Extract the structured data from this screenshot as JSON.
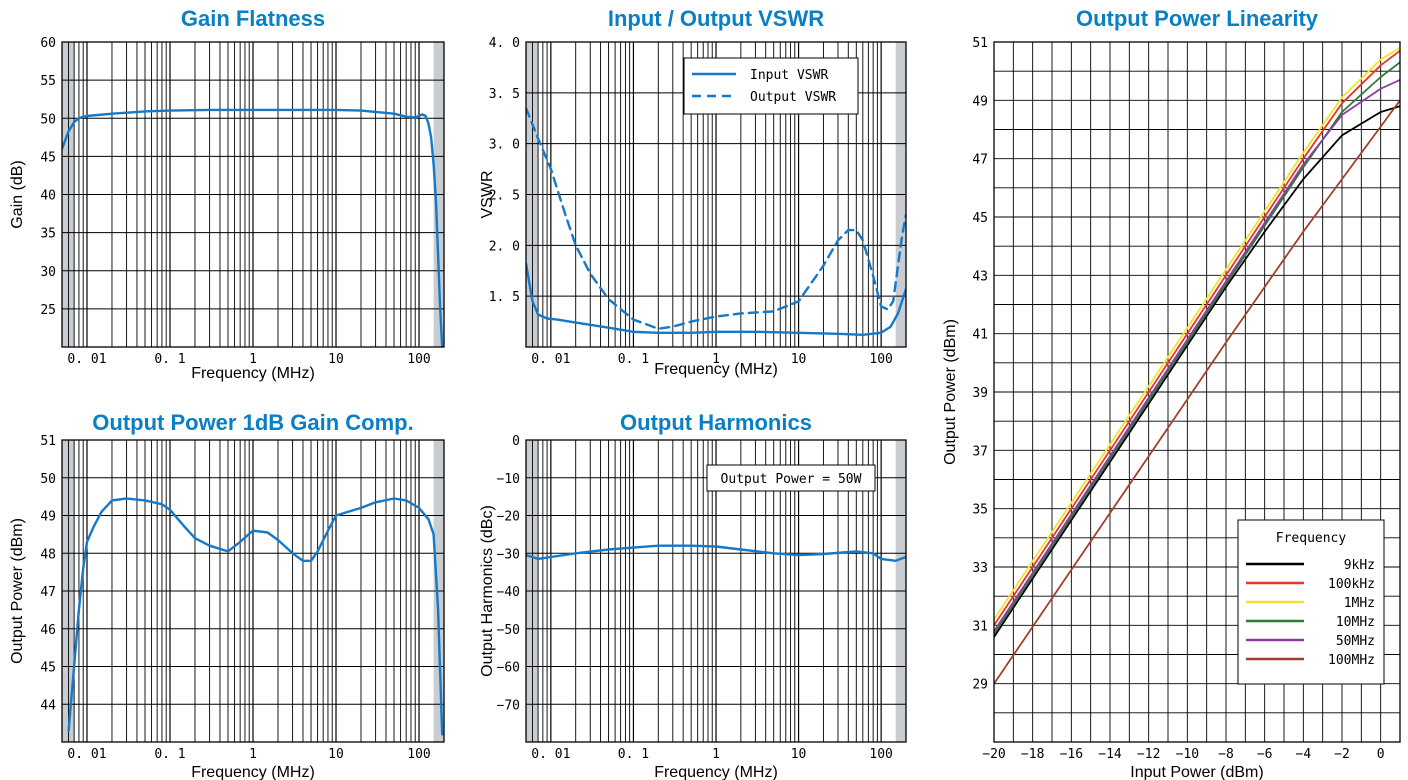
{
  "chart_data": [
    {
      "id": "gain",
      "type": "line",
      "title": "Gain Flatness",
      "xlabel": "Frequency (MHz)",
      "ylabel": "Gain (dB)",
      "xscale": "log",
      "xlim": [
        0.005,
        200
      ],
      "ylim": [
        20,
        60
      ],
      "xticks": [
        0.01,
        0.1,
        1,
        10,
        100
      ],
      "xticklabels": [
        "0. 01",
        "0. 1",
        "1",
        "10",
        "100"
      ],
      "yticks": [
        25,
        30,
        35,
        40,
        45,
        50,
        55,
        60
      ],
      "yticklabels": [
        "25",
        "30",
        "35",
        "40",
        "45",
        "50",
        "55",
        "60"
      ],
      "shaded": [
        [
          0.005,
          0.007
        ],
        [
          150,
          200
        ]
      ],
      "grid": true,
      "series": [
        {
          "color": "#1479c9",
          "dash": false,
          "x": [
            0.005,
            0.006,
            0.007,
            0.008,
            0.009,
            0.01,
            0.02,
            0.05,
            0.1,
            0.3,
            1,
            3,
            10,
            20,
            50,
            70,
            90,
            110,
            120,
            130,
            140,
            150,
            160,
            170,
            180,
            190
          ],
          "y": [
            46,
            48.3,
            49.5,
            50,
            50.2,
            50.3,
            50.6,
            50.9,
            51.0,
            51.1,
            51.1,
            51.1,
            51.1,
            51.0,
            50.6,
            50.2,
            50.1,
            50.5,
            50.3,
            49.3,
            47.5,
            44,
            39,
            32,
            25,
            20
          ]
        }
      ]
    },
    {
      "id": "vswr",
      "type": "line",
      "title": "Input / Output VSWR",
      "xlabel": "Frequency (MHz)",
      "ylabel": "VSWR",
      "xscale": "log",
      "xlim": [
        0.005,
        200
      ],
      "ylim": [
        1.0,
        4.0
      ],
      "xticks": [
        0.01,
        0.1,
        1,
        10,
        100
      ],
      "xticklabels": [
        "0. 01",
        "0. 1",
        "1",
        "10",
        "100"
      ],
      "yticks": [
        1.5,
        2.0,
        2.5,
        3.0,
        3.5,
        4.0
      ],
      "yticklabels": [
        "1. 5",
        "2. 0",
        "2. 5",
        "3. 0",
        "3. 5",
        "4. 0"
      ],
      "shaded": [
        [
          0.005,
          0.007
        ],
        [
          150,
          200
        ]
      ],
      "grid": true,
      "legend": {
        "position": "top-right",
        "entries": [
          "Input VSWR",
          "Output VSWR"
        ]
      },
      "series": [
        {
          "name": "Input VSWR",
          "color": "#1479c9",
          "dash": false,
          "x": [
            0.005,
            0.006,
            0.007,
            0.009,
            0.012,
            0.02,
            0.05,
            0.1,
            0.2,
            0.5,
            1,
            3,
            10,
            30,
            60,
            100,
            130,
            160,
            200
          ],
          "y": [
            1.82,
            1.45,
            1.32,
            1.28,
            1.27,
            1.24,
            1.19,
            1.15,
            1.14,
            1.14,
            1.15,
            1.15,
            1.14,
            1.13,
            1.12,
            1.14,
            1.2,
            1.33,
            1.57
          ]
        },
        {
          "name": "Output VSWR",
          "color": "#1479c9",
          "dash": true,
          "x": [
            0.005,
            0.007,
            0.01,
            0.015,
            0.02,
            0.03,
            0.05,
            0.1,
            0.2,
            0.3,
            0.5,
            1,
            2,
            5,
            10,
            20,
            30,
            40,
            50,
            60,
            80,
            100,
            120,
            140,
            160,
            180,
            200
          ],
          "y": [
            3.35,
            3.05,
            2.75,
            2.3,
            2.0,
            1.72,
            1.47,
            1.27,
            1.18,
            1.2,
            1.25,
            1.3,
            1.33,
            1.35,
            1.45,
            1.8,
            2.05,
            2.15,
            2.15,
            2.05,
            1.7,
            1.4,
            1.37,
            1.45,
            1.8,
            2.1,
            2.3
          ]
        }
      ]
    },
    {
      "id": "p1db",
      "type": "line",
      "title": "Output Power 1dB Gain Comp.",
      "xlabel": "Frequency (MHz)",
      "ylabel": "Output Power (dBm)",
      "xscale": "log",
      "xlim": [
        0.005,
        200
      ],
      "ylim": [
        43,
        51
      ],
      "xticks": [
        0.01,
        0.1,
        1,
        10,
        100
      ],
      "xticklabels": [
        "0. 01",
        "0. 1",
        "1",
        "10",
        "100"
      ],
      "yticks": [
        44,
        45,
        46,
        47,
        48,
        49,
        50,
        51
      ],
      "yticklabels": [
        "44",
        "45",
        "46",
        "47",
        "48",
        "49",
        "50",
        "51"
      ],
      "shaded": [
        [
          0.005,
          0.007
        ],
        [
          150,
          200
        ]
      ],
      "grid": true,
      "series": [
        {
          "color": "#1479c9",
          "dash": false,
          "x": [
            0.006,
            0.007,
            0.008,
            0.009,
            0.01,
            0.012,
            0.015,
            0.02,
            0.03,
            0.05,
            0.08,
            0.1,
            0.15,
            0.2,
            0.3,
            0.5,
            0.7,
            1,
            1.5,
            2,
            3,
            4,
            5,
            6,
            8,
            10,
            20,
            30,
            50,
            70,
            100,
            130,
            150,
            170,
            190
          ],
          "y": [
            43.3,
            45,
            46.5,
            47.6,
            48.3,
            48.7,
            49.1,
            49.4,
            49.45,
            49.4,
            49.3,
            49.15,
            48.7,
            48.4,
            48.2,
            48.05,
            48.3,
            48.6,
            48.55,
            48.35,
            48.0,
            47.8,
            47.8,
            48.05,
            48.6,
            49.0,
            49.2,
            49.35,
            49.45,
            49.4,
            49.2,
            48.9,
            48.5,
            46.5,
            43.2
          ]
        }
      ]
    },
    {
      "id": "harmonics",
      "type": "line",
      "title": "Output Harmonics",
      "xlabel": "Frequency (MHz)",
      "ylabel": "Output Harmonics (dBc)",
      "xscale": "log",
      "xlim": [
        0.005,
        200
      ],
      "ylim": [
        -80,
        0
      ],
      "xticks": [
        0.01,
        0.1,
        1,
        10,
        100
      ],
      "xticklabels": [
        "0. 01",
        "0. 1",
        "1",
        "10",
        "100"
      ],
      "yticks": [
        0,
        -10,
        -20,
        -30,
        -40,
        -50,
        -60,
        -70
      ],
      "yticklabels": [
        "0",
        "−10",
        "−20",
        "−30",
        "−40",
        "−50",
        "−60",
        "−70"
      ],
      "shaded": [
        [
          0.005,
          0.007
        ],
        [
          150,
          200
        ]
      ],
      "grid": true,
      "annotation": "Output Power = 50W",
      "series": [
        {
          "color": "#1479c9",
          "dash": false,
          "x": [
            0.005,
            0.007,
            0.01,
            0.02,
            0.05,
            0.1,
            0.2,
            0.5,
            1,
            2,
            5,
            10,
            20,
            50,
            80,
            100,
            150,
            200
          ],
          "y": [
            -30.5,
            -31.5,
            -31,
            -30,
            -29,
            -28.5,
            -28,
            -28,
            -28.2,
            -29,
            -30,
            -30.5,
            -30.2,
            -29.5,
            -30,
            -31.5,
            -32,
            -31
          ]
        }
      ]
    },
    {
      "id": "linearity",
      "type": "line",
      "title": "Output Power Linearity",
      "xlabel": "Input Power (dBm)",
      "ylabel": "Output Power (dBm)",
      "xscale": "linear",
      "xlim": [
        -20,
        1
      ],
      "ylim": [
        27,
        51
      ],
      "xticks": [
        -20,
        -18,
        -16,
        -14,
        -12,
        -10,
        -8,
        -6,
        -4,
        -2,
        0
      ],
      "xticklabels": [
        "−20",
        "−18",
        "−16",
        "−14",
        "−12",
        "−10",
        "−8",
        "−6",
        "−4",
        "−2",
        "0"
      ],
      "yticks": [
        29,
        31,
        33,
        35,
        37,
        39,
        41,
        43,
        45,
        47,
        49,
        51
      ],
      "yticklabels": [
        "29",
        "31",
        "33",
        "35",
        "37",
        "39",
        "41",
        "43",
        "45",
        "47",
        "49",
        "51"
      ],
      "grid": true,
      "legend": {
        "position": "bottom-right",
        "title": "Frequency",
        "entries": [
          "9kHz",
          "100kHz",
          "1MHz",
          "10MHz",
          "50MHz",
          "100MHz"
        ]
      },
      "series": [
        {
          "name": "9kHz",
          "color": "#000000",
          "x": [
            -20,
            -16,
            -12,
            -8,
            -6,
            -4,
            -2,
            0,
            1
          ],
          "y": [
            30.6,
            34.6,
            38.6,
            42.6,
            44.5,
            46.3,
            47.8,
            48.6,
            48.8
          ]
        },
        {
          "name": "100kHz",
          "color": "#e4382c",
          "x": [
            -20,
            -16,
            -12,
            -8,
            -4,
            -2,
            0,
            1
          ],
          "y": [
            31.0,
            35.0,
            39.0,
            43.0,
            47.0,
            48.9,
            50.2,
            50.7
          ]
        },
        {
          "name": "1MHz",
          "color": "#f2e12e",
          "x": [
            -20,
            -16,
            -12,
            -8,
            -4,
            -2,
            0,
            1
          ],
          "y": [
            31.2,
            35.2,
            39.2,
            43.2,
            47.2,
            49.1,
            50.4,
            50.8
          ]
        },
        {
          "name": "10MHz",
          "color": "#2e7a3b",
          "x": [
            -20,
            -16,
            -12,
            -8,
            -4,
            -2,
            0,
            1
          ],
          "y": [
            30.7,
            34.7,
            38.7,
            42.7,
            46.7,
            48.6,
            49.8,
            50.3
          ]
        },
        {
          "name": "50MHz",
          "color": "#8a3fa0",
          "x": [
            -20,
            -16,
            -12,
            -8,
            -4,
            -2,
            0,
            1
          ],
          "y": [
            30.8,
            34.8,
            38.8,
            42.8,
            46.8,
            48.5,
            49.4,
            49.7
          ]
        },
        {
          "name": "100MHz",
          "color": "#a0402c",
          "x": [
            -20,
            -16,
            -12,
            -8,
            -4,
            -2,
            0,
            1
          ],
          "y": [
            29.0,
            32.9,
            36.8,
            40.7,
            44.5,
            46.3,
            48.1,
            49.0
          ]
        }
      ]
    }
  ]
}
